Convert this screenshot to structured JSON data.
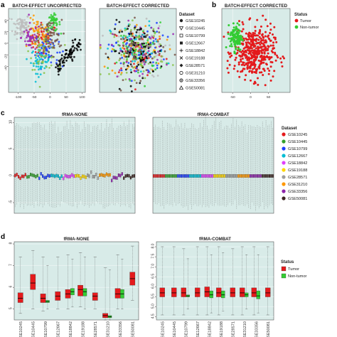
{
  "panel_letters": [
    "a",
    "b",
    "c",
    "d"
  ],
  "chart_data": [
    {
      "id": "a1",
      "type": "scatter",
      "title": "BATCH-EFFECT UNCORRECTED",
      "xlim": [
        -130,
        110
      ],
      "ylim": [
        -85,
        60
      ],
      "xticks": [
        -100,
        -50,
        0,
        50,
        100
      ],
      "yticks": [
        -40,
        -20,
        0,
        20,
        40
      ],
      "series": [
        {
          "name": "GSE10245",
          "center": [
            -20,
            5
          ],
          "spread": [
            35,
            25
          ],
          "n": 60
        },
        {
          "name": "GSE10445",
          "center": [
            -40,
            15
          ],
          "spread": [
            30,
            22
          ],
          "n": 55
        },
        {
          "name": "GSE10799",
          "center": [
            -90,
            30
          ],
          "spread": [
            22,
            18
          ],
          "n": 70
        },
        {
          "name": "GSE12667",
          "center": [
            -10,
            -10
          ],
          "spread": [
            30,
            25
          ],
          "n": 55
        },
        {
          "name": "GSE18842",
          "center": [
            -30,
            -30
          ],
          "spread": [
            25,
            18
          ],
          "n": 50
        },
        {
          "name": "GSE19188",
          "center": [
            10,
            35
          ],
          "spread": [
            18,
            12
          ],
          "n": 50
        },
        {
          "name": "GSE28571",
          "center": [
            -60,
            10
          ],
          "spread": [
            25,
            20
          ],
          "n": 45
        },
        {
          "name": "GSE31210",
          "center": [
            50,
            -20
          ],
          "spread": [
            35,
            20
          ],
          "n": 80
        },
        {
          "name": "GSE33356",
          "center": [
            -20,
            -15
          ],
          "spread": [
            35,
            25
          ],
          "n": 60
        },
        {
          "name": "GSE50081",
          "center": [
            0,
            10
          ],
          "spread": [
            30,
            25
          ],
          "n": 55
        }
      ]
    },
    {
      "id": "a2",
      "type": "scatter",
      "title": "BATCH-EFFECT CORRECTED",
      "xlim": [
        -80,
        80
      ],
      "ylim": [
        -80,
        80
      ],
      "series_from": "a1"
    },
    {
      "id": "b",
      "type": "scatter",
      "title": "BATCH-EFFECT CORRECTED",
      "xlim": [
        -80,
        110
      ],
      "ylim": [
        -80,
        80
      ],
      "xticks": [
        -50,
        0,
        50
      ],
      "series": [
        {
          "name": "Tumor",
          "center": [
            10,
            -5
          ],
          "spread": [
            40,
            35
          ],
          "n": 420
        },
        {
          "name": "Non-tumor",
          "center": [
            -40,
            25
          ],
          "spread": [
            12,
            18
          ],
          "n": 120
        }
      ]
    },
    {
      "id": "c1",
      "type": "box",
      "title": "fRMA-NONE",
      "ylim": [
        -7,
        11
      ],
      "yticks": [
        -5,
        0,
        5,
        10
      ],
      "n_boxes": 70,
      "whisker": [
        -5.5,
        9.5
      ]
    },
    {
      "id": "c2",
      "type": "box",
      "title": "fRMA-COMBAT",
      "ylim": [
        -7,
        11
      ],
      "n_boxes": 70,
      "whisker": [
        -5.5,
        9.5
      ]
    },
    {
      "id": "d1",
      "type": "box",
      "title": "fRMA-NONE",
      "ylim": [
        4.5,
        8.1
      ],
      "yticks": [
        5,
        6,
        7,
        8
      ],
      "categories": [
        "SE10245",
        "SE10445",
        "SE10799",
        "SE12667",
        "SE18842",
        "SE19188",
        "SE28571",
        "SE31210",
        "SE33356",
        "SE50081"
      ],
      "series": [
        {
          "name": "Tumor",
          "medians": [
            5.5,
            6.2,
            5.5,
            5.6,
            5.7,
            5.9,
            5.6,
            4.7,
            5.7,
            6.4
          ],
          "q1": [
            5.3,
            5.9,
            5.3,
            5.4,
            5.5,
            5.6,
            5.4,
            4.6,
            5.5,
            6.1
          ],
          "q3": [
            5.75,
            6.6,
            5.7,
            5.8,
            5.9,
            6.1,
            5.75,
            4.8,
            5.95,
            6.7
          ],
          "lo": [
            4.8,
            5.0,
            4.9,
            5.0,
            5.0,
            5.1,
            5.0,
            4.5,
            5.0,
            5.4
          ],
          "hi": [
            7.4,
            7.7,
            7.4,
            7.4,
            7.5,
            7.6,
            7.4,
            6.9,
            7.5,
            7.9
          ]
        },
        {
          "name": "Non-tumor",
          "medians": [
            null,
            null,
            5.35,
            null,
            5.8,
            5.8,
            null,
            4.65,
            5.7,
            null
          ],
          "q1": [
            null,
            null,
            5.3,
            null,
            5.65,
            5.6,
            null,
            4.6,
            5.5,
            null
          ],
          "q3": [
            null,
            null,
            5.4,
            null,
            5.95,
            5.95,
            null,
            4.7,
            5.9,
            null
          ],
          "lo": [
            null,
            null,
            5.0,
            null,
            5.1,
            5.0,
            null,
            4.5,
            5.0,
            null
          ],
          "hi": [
            null,
            null,
            7.0,
            null,
            7.3,
            7.4,
            null,
            6.8,
            7.3,
            null
          ]
        }
      ]
    },
    {
      "id": "d2",
      "type": "box",
      "title": "fRMA-COMBAT",
      "ylim": [
        4.35,
        8.25
      ],
      "yticks": [
        4.5,
        5.0,
        5.5,
        6.0,
        6.5,
        7.0,
        7.5,
        8.0
      ],
      "ytick_labels": [
        "4.5",
        "5.0",
        "5.5",
        "6.0",
        "6.5",
        "7.0",
        "7.5",
        "8.0"
      ],
      "categories": [
        "SE10245",
        "SE10445",
        "SE10799",
        "SE12667",
        "SE18842",
        "SE19188",
        "SE28571",
        "SE31210",
        "SE33356",
        "SE50081"
      ],
      "series": [
        {
          "name": "Tumor",
          "medians": [
            5.7,
            5.7,
            5.7,
            5.7,
            5.75,
            5.7,
            5.7,
            5.7,
            5.7,
            5.7
          ],
          "q1": [
            5.5,
            5.5,
            5.5,
            5.5,
            5.5,
            5.5,
            5.5,
            5.5,
            5.5,
            5.5
          ],
          "q3": [
            5.95,
            5.95,
            5.95,
            5.95,
            6.0,
            5.95,
            5.95,
            5.95,
            5.95,
            5.95
          ],
          "lo": [
            4.6,
            4.6,
            4.6,
            4.6,
            4.6,
            4.6,
            4.6,
            4.6,
            4.6,
            4.6
          ],
          "hi": [
            8.0,
            8.0,
            7.9,
            8.0,
            8.0,
            8.0,
            7.9,
            8.0,
            8.0,
            8.0
          ]
        },
        {
          "name": "Non-tumor",
          "medians": [
            null,
            null,
            5.55,
            null,
            5.6,
            5.6,
            null,
            5.6,
            5.55,
            null
          ],
          "q1": [
            null,
            null,
            5.5,
            null,
            5.45,
            5.45,
            null,
            5.5,
            5.4,
            null
          ],
          "q3": [
            null,
            null,
            5.6,
            null,
            5.8,
            5.8,
            null,
            5.7,
            5.8,
            null
          ],
          "lo": [
            null,
            null,
            4.9,
            null,
            4.7,
            4.8,
            null,
            4.9,
            4.7,
            null
          ],
          "hi": [
            null,
            null,
            7.4,
            null,
            7.6,
            7.7,
            null,
            7.6,
            7.6,
            null
          ]
        }
      ]
    }
  ],
  "legends": {
    "dataset_a": {
      "title": "Dataset",
      "items": [
        {
          "label": "GSE10245",
          "symbol": "circle"
        },
        {
          "label": "GSE10445",
          "symbol": "triangle-down"
        },
        {
          "label": "GSE10799",
          "symbol": "square-open"
        },
        {
          "label": "GSE12667",
          "symbol": "square"
        },
        {
          "label": "GSE18842",
          "symbol": "plus"
        },
        {
          "label": "GSE19188",
          "symbol": "cross"
        },
        {
          "label": "GSE28571",
          "symbol": "diamond"
        },
        {
          "label": "GSE31210",
          "symbol": "circle-open"
        },
        {
          "label": "GSE33356",
          "symbol": "circle-plus"
        },
        {
          "label": "GSE50081",
          "symbol": "triangle-open"
        }
      ]
    },
    "status_b": {
      "title": "Status",
      "items": [
        {
          "label": "Tumor",
          "color": "#e41a1c"
        },
        {
          "label": "Non-tumor",
          "color": "#33cc33"
        }
      ]
    },
    "dataset_c": {
      "title": "Dataset",
      "items": [
        {
          "label": "GSE10245",
          "color": "#e41a1c"
        },
        {
          "label": "GSE10445",
          "color": "#33a02c"
        },
        {
          "label": "GSE10799",
          "color": "#1f3fff"
        },
        {
          "label": "GSE12667",
          "color": "#00bcd4"
        },
        {
          "label": "GSE18842",
          "color": "#e040fb"
        },
        {
          "label": "GSE19188",
          "color": "#ffd600"
        },
        {
          "label": "GSE28571",
          "color": "#9e9e9e"
        },
        {
          "label": "GSE31210",
          "color": "#ff9800"
        },
        {
          "label": "GSE33356",
          "color": "#8e24aa"
        },
        {
          "label": "GSE50081",
          "color": "#3e2723"
        }
      ]
    },
    "status_d": {
      "title": "Status",
      "items": [
        {
          "label": "Tumor",
          "color": "#e41a1c"
        },
        {
          "label": "Non-tumor",
          "color": "#33cc33"
        }
      ]
    }
  },
  "colors": {
    "panel_bg": "#d8ebe8",
    "grid": "#ffffff",
    "scatter_palette": [
      "#e41a1c",
      "#ff9800",
      "#bdbdbd",
      "#1f3fff",
      "#00bcd4",
      "#33cc33",
      "#9c27b0",
      "#000000",
      "#8bc34a",
      "#795548"
    ]
  }
}
